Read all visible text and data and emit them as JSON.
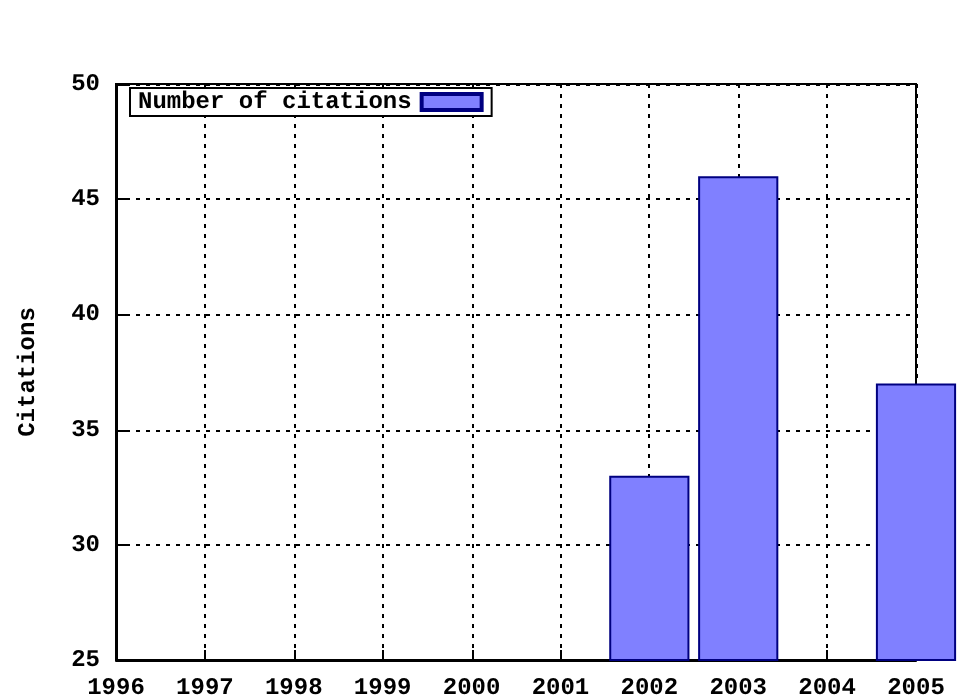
{
  "chart_data": {
    "type": "bar",
    "ylabel": "Citations",
    "x": [
      2002,
      2003,
      2005
    ],
    "series": [
      {
        "name": "Number of citations",
        "color": "#8080ff",
        "values": [
          33,
          46,
          37
        ]
      }
    ],
    "xlim": [
      1996,
      2005
    ],
    "xticks": [
      1996,
      1997,
      1998,
      1999,
      2000,
      2001,
      2002,
      2003,
      2004,
      2005
    ],
    "ylim": [
      25,
      50
    ],
    "yticks": [
      25,
      30,
      35,
      40,
      45,
      50
    ],
    "grid": true,
    "legend": "top left"
  }
}
